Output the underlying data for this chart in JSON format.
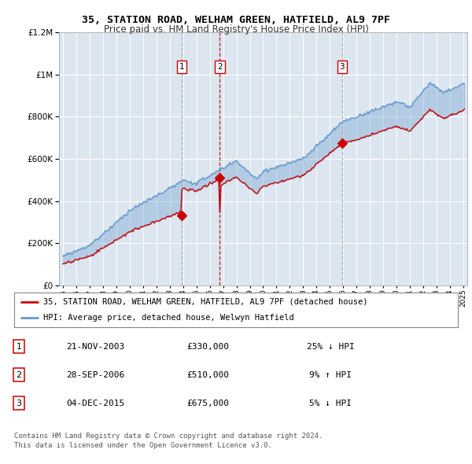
{
  "title1": "35, STATION ROAD, WELHAM GREEN, HATFIELD, AL9 7PF",
  "title2": "Price paid vs. HM Land Registry's House Price Index (HPI)",
  "legend_line1": "35, STATION ROAD, WELHAM GREEN, HATFIELD, AL9 7PF (detached house)",
  "legend_line2": "HPI: Average price, detached house, Welwyn Hatfield",
  "transactions": [
    {
      "num": 1,
      "date": "21-NOV-2003",
      "price": 330000,
      "pct": "25%",
      "dir": "↓",
      "x_year": 2003.9,
      "vline_color": "#aaaaaa",
      "vline_style": "--"
    },
    {
      "num": 2,
      "date": "28-SEP-2006",
      "price": 510000,
      "pct": "9%",
      "dir": "↑",
      "x_year": 2006.75,
      "vline_color": "#cc0000",
      "vline_style": "--"
    },
    {
      "num": 3,
      "date": "04-DEC-2015",
      "price": 675000,
      "pct": "5%",
      "dir": "↓",
      "x_year": 2015.92,
      "vline_color": "#aaaaaa",
      "vline_style": "--"
    }
  ],
  "footer1": "Contains HM Land Registry data © Crown copyright and database right 2024.",
  "footer2": "This data is licensed under the Open Government Licence v3.0.",
  "red_color": "#cc0000",
  "blue_color": "#6699cc",
  "bg_color": "#dce6f0",
  "fill_color": "#c5d8ee",
  "grid_color": "#ffffff",
  "ylim": [
    0,
    1200000
  ],
  "xlim_start": 1994.7,
  "xlim_end": 2025.3,
  "yticks": [
    0,
    200000,
    400000,
    600000,
    800000,
    1000000,
    1200000
  ],
  "xtick_start": 1995,
  "xtick_end": 2025
}
